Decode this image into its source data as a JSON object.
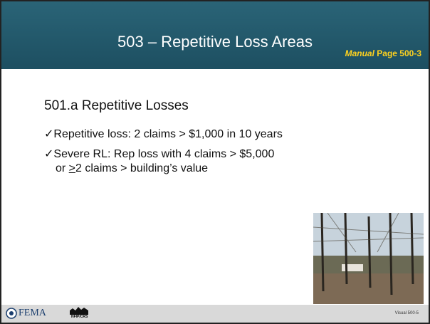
{
  "header": {
    "title": "503 – Repetitive Loss Areas",
    "manual_ref": {
      "italic": "Manual",
      "rest": "Page 500-3"
    }
  },
  "body": {
    "heading": "501.a Repetitive Losses",
    "check": "✓",
    "bullets": [
      {
        "text": "Repetitive loss: 2 claims > $1,000 in 10 years"
      },
      {
        "text": "Severe RL: Rep loss with 4 claims > $5,000",
        "continuation": {
          "before": "or ",
          "underlined": ">",
          "after": "2 claims > building’s value"
        }
      }
    ]
  },
  "footer": {
    "logo": "FEMA",
    "sub_logo": "NFIP/CRS",
    "visual": "Visual 500-5"
  }
}
